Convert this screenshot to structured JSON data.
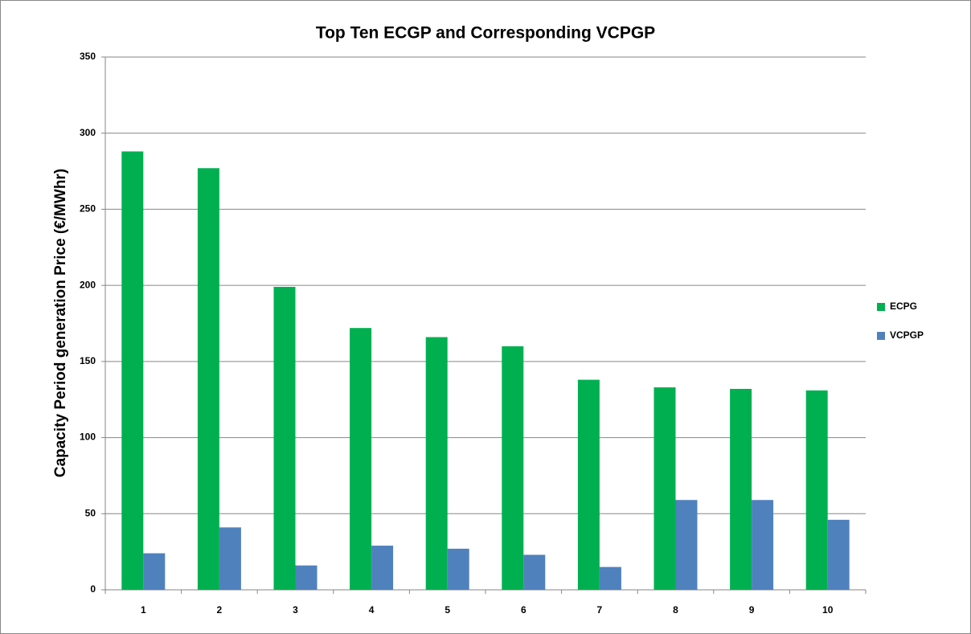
{
  "chart_data": {
    "type": "bar",
    "title": "Top Ten ECGP and Corresponding VCPGP",
    "y_label": "Capacity Period generation Price (€/MWhr)",
    "categories": [
      "1",
      "2",
      "3",
      "4",
      "5",
      "6",
      "7",
      "8",
      "9",
      "10"
    ],
    "series": [
      {
        "name": "ECPG",
        "color": "#00b050",
        "values": [
          288,
          277,
          199,
          172,
          166,
          160,
          138,
          133,
          132,
          131
        ]
      },
      {
        "name": "VCPGP",
        "color": "#4f81bd",
        "values": [
          24,
          41,
          16,
          29,
          27,
          23,
          15,
          59,
          59,
          46
        ]
      }
    ],
    "ylim": [
      0,
      350
    ],
    "yticks": [
      0,
      50,
      100,
      150,
      200,
      250,
      300,
      350
    ],
    "grid": true,
    "legend": "right"
  }
}
